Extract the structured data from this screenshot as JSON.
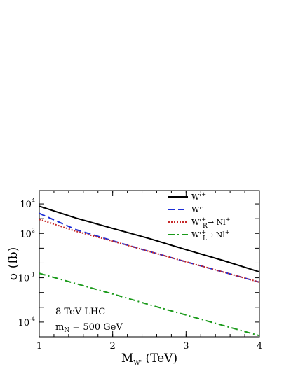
{
  "chart_data": {
    "type": "line",
    "xlabel": "M",
    "xlabel_sub": "W'",
    "xlabel_unit": "(TeV)",
    "ylabel": "σ (fb)",
    "x_ticks": [
      {
        "value": 1,
        "label": "1"
      },
      {
        "value": 2,
        "label": "2"
      },
      {
        "value": 3,
        "label": "3"
      },
      {
        "value": 4,
        "label": "4"
      }
    ],
    "y_ticks": [
      {
        "value": 10000,
        "base": "10",
        "exp": "4"
      },
      {
        "value": 100,
        "base": "10",
        "exp": "2"
      },
      {
        "value": 0.1,
        "base": "10",
        "exp": "-1"
      },
      {
        "value": 0.0001,
        "base": "10",
        "exp": "-4"
      }
    ],
    "xlim": [
      1,
      4
    ],
    "ylim": [
      1e-05,
      80000
    ],
    "yscale": "log",
    "grid": false,
    "legend_position": "top-right",
    "annotations": [
      "8 TeV LHC",
      "m_N = 500 GeV"
    ],
    "series": [
      {
        "name": "W'+",
        "legend": {
          "main": "W'",
          "sup": "+",
          "sub": ""
        },
        "color": "#000000",
        "style": "solid",
        "x": [
          1.0,
          1.5,
          2.0,
          2.5,
          3.0,
          3.5,
          4.0
        ],
        "y": [
          7000,
          1100,
          220,
          45,
          8,
          1.5,
          0.25
        ]
      },
      {
        "name": "W'-",
        "legend": {
          "main": "W'",
          "sup": "-",
          "sub": ""
        },
        "color": "#1e2fd6",
        "style": "dashed",
        "x": [
          1.0,
          1.5,
          2.0,
          2.5,
          3.0,
          3.5,
          4.0
        ],
        "y": [
          2300,
          180,
          32,
          6,
          1.2,
          0.25,
          0.05
        ]
      },
      {
        "name": "W'+_R → N l+",
        "legend": {
          "main": "W'",
          "sup": "+",
          "sub": "R",
          "tail": "→ Nl",
          "tail_sup": "+"
        },
        "color": "#c62828",
        "style": "dotted",
        "x": [
          1.0,
          1.5,
          2.0,
          2.5,
          3.0,
          3.5,
          4.0
        ],
        "y": [
          900,
          140,
          30,
          6,
          1.2,
          0.25,
          0.05
        ]
      },
      {
        "name": "W'+_L → N l+",
        "legend": {
          "main": "W'",
          "sup": "+",
          "sub": "L",
          "tail": "→ Nl",
          "tail_sup": "+"
        },
        "color": "#1a9a1a",
        "style": "dashdot",
        "x": [
          1.0,
          1.5,
          2.0,
          2.5,
          3.0,
          3.5,
          4.0
        ],
        "y": [
          0.2,
          0.04,
          0.008,
          0.0015,
          0.0003,
          6e-05,
          1.2e-05
        ]
      }
    ]
  }
}
